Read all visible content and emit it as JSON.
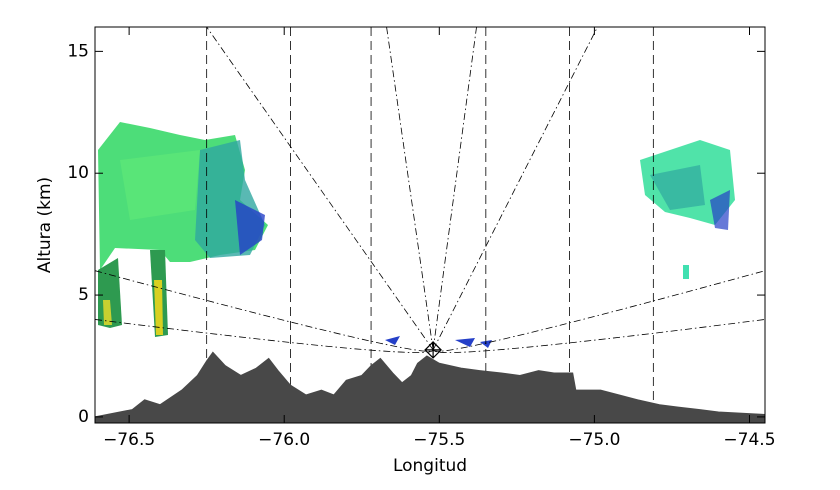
{
  "chart_data": {
    "type": "area",
    "xlabel": "Longitud",
    "ylabel": "Altura (km)",
    "x": [
      -76.61,
      -76.49,
      -76.45,
      -76.4,
      -76.33,
      -76.28,
      -76.25,
      -76.23,
      -76.19,
      -76.14,
      -76.09,
      -76.05,
      -76.02,
      -75.98,
      -75.93,
      -75.88,
      -75.84,
      -75.8,
      -75.75,
      -75.72,
      -75.69,
      -75.65,
      -75.62,
      -75.59,
      -75.57,
      -75.54,
      -75.5,
      -75.43,
      -75.37,
      -75.3,
      -75.24,
      -75.18,
      -75.13,
      -75.07,
      -75.06,
      -74.98,
      -74.92,
      -74.86,
      -74.79,
      -74.73,
      -74.66,
      -74.6,
      -74.45
    ],
    "series": [
      {
        "color": "#484848",
        "values": [
          0.0,
          0.3,
          0.7,
          0.5,
          1.1,
          1.7,
          2.3,
          2.65,
          2.1,
          1.7,
          2.0,
          2.4,
          1.9,
          1.3,
          0.9,
          1.1,
          0.9,
          1.5,
          1.7,
          2.1,
          2.4,
          1.8,
          1.4,
          1.7,
          2.2,
          2.5,
          2.2,
          2.0,
          1.9,
          1.8,
          1.7,
          1.9,
          1.8,
          1.8,
          1.1,
          1.1,
          0.9,
          0.7,
          0.5,
          0.4,
          0.3,
          0.2,
          0.1
        ]
      }
    ],
    "xlim": [
      -76.61,
      -74.45
    ],
    "ylim": [
      -0.25,
      16
    ],
    "xticks": [
      {
        "value": -76.5,
        "label": "−76.5"
      },
      {
        "value": -76.0,
        "label": "−76.0"
      },
      {
        "value": -75.5,
        "label": "−75.5"
      },
      {
        "value": -75.0,
        "label": "−75.0"
      },
      {
        "value": -74.5,
        "label": "−74.5"
      }
    ],
    "yticks": [
      0,
      5,
      10,
      15
    ],
    "grid": false
  }
}
